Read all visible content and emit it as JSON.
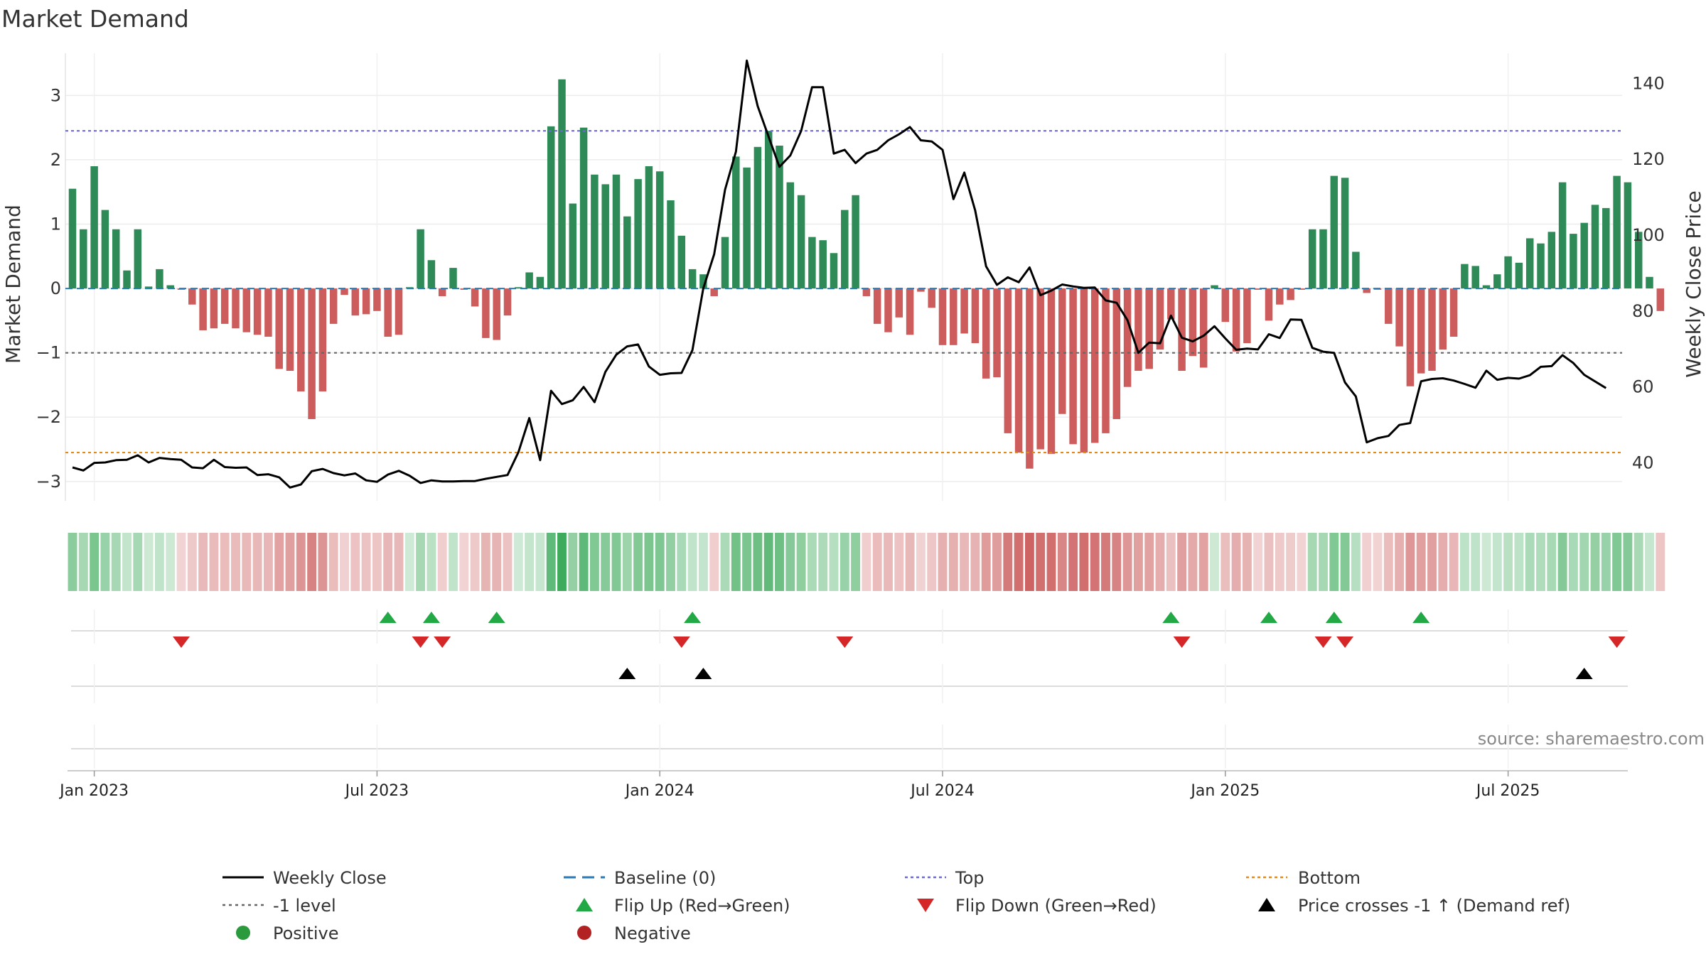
{
  "chart_data": {
    "type": "bar+line",
    "title": "Market Demand",
    "ylabel_left": "Market Demand",
    "ylabel_right": "Weekly Close Price",
    "source": "source: sharemaestro.com",
    "ylim_left": [
      -3.3,
      3.6
    ],
    "ylim_right": [
      30,
      147
    ],
    "left_ticks": [
      3,
      2,
      1,
      0,
      -1,
      -2,
      -3
    ],
    "left_tick_labels": [
      "3",
      "2",
      "1",
      "0",
      "−1",
      "−2",
      "−3"
    ],
    "right_ticks": [
      140,
      120,
      100,
      80,
      60,
      40
    ],
    "x_tick_labels": [
      "Jan 2023",
      "Jul 2023",
      "Jan 2024",
      "Jul 2024",
      "Jan 2025",
      "Jul 2025"
    ],
    "x_tick_weeks": [
      0,
      26,
      52,
      78,
      104,
      130
    ],
    "first_week_index": -2,
    "levels": {
      "top": 2.45,
      "minus_one": -1.0,
      "bottom": -2.55,
      "baseline": 0
    },
    "demand": [
      1.55,
      0.92,
      1.9,
      1.22,
      0.92,
      0.28,
      0.92,
      0.03,
      0.3,
      0.05,
      -0.02,
      -0.25,
      -0.65,
      -0.62,
      -0.55,
      -0.62,
      -0.68,
      -0.72,
      -0.75,
      -1.25,
      -1.28,
      -1.6,
      -2.03,
      -1.6,
      -0.55,
      -0.1,
      -0.42,
      -0.4,
      -0.35,
      -0.75,
      -0.72,
      0.02,
      0.92,
      0.44,
      -0.12,
      0.32,
      -0.02,
      -0.28,
      -0.77,
      -0.8,
      -0.42,
      0.02,
      0.25,
      0.18,
      2.52,
      3.25,
      1.32,
      2.5,
      1.77,
      1.62,
      1.77,
      1.12,
      1.7,
      1.9,
      1.82,
      1.37,
      0.82,
      0.3,
      0.22,
      -0.12,
      0.8,
      2.05,
      1.88,
      2.2,
      2.45,
      2.22,
      1.65,
      1.45,
      0.8,
      0.75,
      0.55,
      1.22,
      1.45,
      -0.12,
      -0.55,
      -0.68,
      -0.45,
      -0.72,
      -0.05,
      -0.3,
      -0.88,
      -0.88,
      -0.7,
      -0.85,
      -1.4,
      -1.38,
      -2.25,
      -2.55,
      -2.8,
      -2.5,
      -2.57,
      -1.95,
      -2.42,
      -2.55,
      -2.4,
      -2.25,
      -2.03,
      -1.53,
      -1.28,
      -1.25,
      -0.95,
      -0.48,
      -1.28,
      -1.05,
      -1.23,
      0.05,
      -0.52,
      -0.98,
      -0.85,
      -0.02,
      -0.5,
      -0.25,
      -0.18,
      -0.02,
      0.92,
      0.92,
      1.75,
      1.72,
      0.57,
      -0.07,
      -0.02,
      -0.55,
      -0.9,
      -1.52,
      -1.32,
      -1.28,
      -0.95,
      -0.75,
      0.38,
      0.35,
      0.05,
      0.22,
      0.5,
      0.4,
      0.78,
      0.7,
      0.88,
      1.65,
      0.85,
      1.02,
      1.3,
      1.25,
      1.75,
      1.65,
      0.88,
      0.18,
      -0.35
    ],
    "price": [
      38.8,
      38.0,
      40.0,
      40.1,
      40.7,
      40.8,
      42.0,
      40.1,
      41.3,
      41.0,
      40.8,
      38.8,
      38.6,
      40.8,
      38.9,
      38.7,
      38.8,
      36.8,
      37.0,
      36.2,
      33.5,
      34.3,
      37.8,
      38.4,
      37.3,
      36.7,
      37.2,
      35.4,
      35.0,
      36.9,
      37.9,
      36.6,
      34.7,
      35.4,
      35.1,
      35.1,
      35.2,
      35.2,
      35.8,
      36.3,
      36.8,
      42.8,
      51.8,
      40.7,
      59.0,
      55.5,
      56.5,
      60.0,
      56.0,
      64.0,
      68.5,
      70.7,
      71.2,
      65.4,
      63.2,
      63.6,
      63.7,
      69.7,
      86.0,
      95.0,
      112.0,
      122.0,
      146.0,
      134.0,
      126.0,
      118.0,
      121.0,
      127.5,
      139.0,
      139.0,
      121.5,
      122.5,
      119.0,
      121.5,
      122.5,
      125.0,
      126.6,
      128.5,
      125.0,
      124.7,
      122.5,
      109.5,
      116.5,
      106.5,
      91.8,
      86.9,
      88.9,
      87.6,
      91.5,
      84.2,
      85.4,
      87.0,
      86.5,
      86.1,
      86.2,
      82.8,
      82.2,
      77.6,
      69.0,
      71.7,
      71.5,
      78.8,
      73.0,
      72.0,
      73.5,
      76.0,
      72.8,
      69.8,
      70.1,
      69.9,
      73.9,
      72.9,
      77.8,
      77.7,
      70.3,
      69.3,
      69.0,
      61.2,
      57.5,
      45.4,
      46.5,
      47.1,
      50.0,
      50.5,
      61.5,
      62.1,
      62.3,
      61.7,
      60.8,
      59.8,
      64.3,
      61.9,
      62.4,
      62.2,
      63.1,
      65.3,
      65.5,
      68.4,
      66.3,
      63.2,
      59.7
    ],
    "last_price_week_spacing": 2,
    "flip_up_weeks": [
      27,
      31,
      37,
      55,
      99,
      108,
      114,
      122
    ],
    "flip_down_weeks": [
      8,
      30,
      32,
      54,
      69,
      100,
      113,
      115,
      140
    ],
    "cross_weeks": [
      49,
      56,
      137
    ],
    "legend": {
      "weekly_close": "Weekly Close",
      "minus_one_level": "-1 level",
      "positive": "Positive",
      "baseline": "Baseline (0)",
      "flip_up": "Flip Up (Red→Green)",
      "negative": "Negative",
      "top": "Top",
      "flip_down": "Flip Down (Green→Red)",
      "bottom": "Bottom",
      "cross": "Price crosses -1 ↑ (Demand ref)"
    },
    "colors": {
      "positive": "#2e8b57",
      "negative": "#cd5c5c",
      "price_line": "#000000",
      "top_line": "#6a6ad0",
      "bottom_line": "#e08a1e",
      "minus_one_line": "#666666",
      "baseline": "#2a7ab8",
      "flip_up": "#22a845",
      "flip_down": "#d62728",
      "cross": "#000000",
      "positive_dot": "#2a9a3c",
      "negative_dot": "#b22222"
    }
  }
}
